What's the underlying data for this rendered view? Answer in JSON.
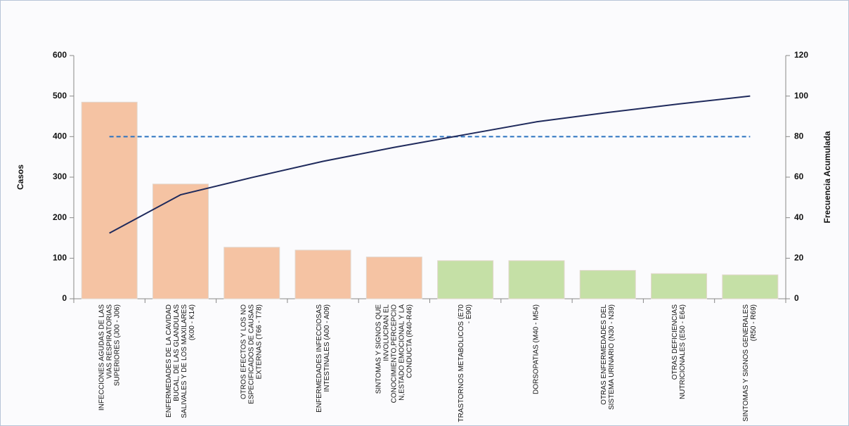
{
  "chart_data": {
    "type": "pareto",
    "y_label": "Casos",
    "y2_label": "Frecuencia Acumulada",
    "categories": [
      "INFECCIONES AGUDAS DE LAS VIAS RESPIRATORIAS SUPERIORES (J00 - J06)",
      "ENFERMEDADES DE LA CAVIDAD BUCAL, DE LAS GLANDULAS SALIVALES Y DE LOS MAXILARES (K00 - K14)",
      "OTROS EFECTOS Y LOS NO ESPECIFICADOS DE CAUSAS EXTERNAS (T66 - T78)",
      "ENFERMEDADES INFECCIOSAS INTESTINALES (A00 - A09)",
      "SINTOMAS Y SIGNOS QUE INVOLUCRAN EL CONOCIMIENTO,PERCEPCIO N,ESTADO EMOCIONAL Y LA CONDUCTA (R40-R46)",
      "TRASTORNOS METABOLICOS (E70 - E90)",
      "DORSOPATIAS (M40 - M54)",
      "OTRAS ENFERMEDADES DEL SISTEMA URINARIO (N30 - N39)",
      "OTRAS DEFICIENCIAS NUTRICIONALES (E50 - E64)",
      "SINTOMAS Y SIGNOS GENERALES (R50 - R69)"
    ],
    "series": [
      {
        "type": "bar",
        "values": [
          485,
          283,
          127,
          120,
          103,
          94,
          94,
          70,
          62,
          59
        ],
        "colors": [
          "#f5c3a3",
          "#f5c3a3",
          "#f5c3a3",
          "#f5c3a3",
          "#f5c3a3",
          "#c5e0a6",
          "#c5e0a6",
          "#c5e0a6",
          "#c5e0a6",
          "#c5e0a6"
        ]
      },
      {
        "type": "line",
        "axis": "y2",
        "color": "#1f2a5c",
        "values": [
          32.4,
          51.3,
          59.8,
          67.8,
          74.7,
          81.0,
          87.3,
          91.9,
          96.1,
          100
        ]
      }
    ],
    "threshold": 80,
    "threshold_color": "#2a72c0",
    "ylim": [
      0,
      600
    ],
    "yticks": [
      0,
      100,
      200,
      300,
      400,
      500,
      600
    ],
    "y2lim": [
      0,
      120
    ],
    "y2ticks": [
      0,
      20,
      40,
      60,
      80,
      100,
      120
    ]
  }
}
